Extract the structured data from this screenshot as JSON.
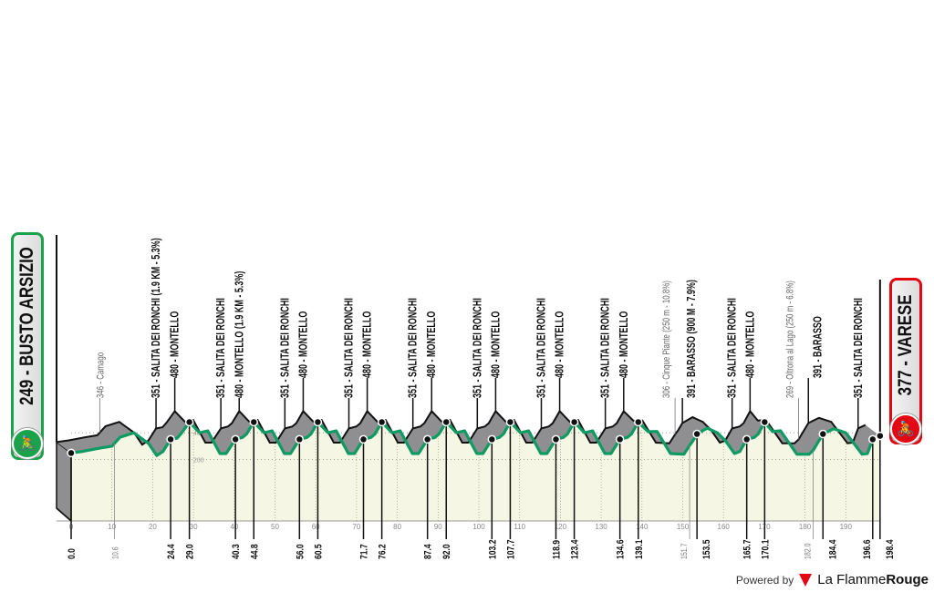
{
  "start": {
    "elevation": "249",
    "name": "BUSTO ARSIZIO",
    "label": "249 - BUSTO ARSIZIO",
    "color": "#1aa34a",
    "icon": "cyclist-icon"
  },
  "finish": {
    "elevation": "377",
    "name": "VARESE",
    "label": "377 - VARESE",
    "color": "#e30613",
    "icon": "cyclist-icon"
  },
  "footer": {
    "powered_by": "Powered by",
    "brand_a": "La Flamme",
    "brand_b": "Rouge"
  },
  "chart_data": {
    "type": "area",
    "xlabel": "",
    "ylabel": "",
    "xlim": [
      0,
      198.4
    ],
    "x_ticks": [
      0,
      10,
      20,
      30,
      40,
      50,
      60,
      70,
      80,
      90,
      100,
      110,
      120,
      130,
      140,
      150,
      160,
      170,
      180,
      190
    ],
    "y_grid": [
      200,
      400
    ],
    "grid": true,
    "colors": {
      "line": "#0e9a63",
      "fill": "#f6f6e4",
      "relief": "#8f8f91"
    },
    "profile": [
      [
        0,
        249
      ],
      [
        3,
        262
      ],
      [
        7,
        285
      ],
      [
        10,
        300
      ],
      [
        12,
        367
      ],
      [
        15.4,
        400
      ],
      [
        16.5,
        375
      ],
      [
        19,
        320
      ],
      [
        21,
        230
      ],
      [
        22.5,
        260
      ],
      [
        24.4,
        351
      ],
      [
        26,
        360
      ],
      [
        27,
        395
      ],
      [
        29,
        480
      ],
      [
        31.5,
        400
      ],
      [
        33.5,
        415
      ],
      [
        36.5,
        245
      ],
      [
        38,
        245
      ],
      [
        40.3,
        351
      ],
      [
        42,
        365
      ],
      [
        43,
        390
      ],
      [
        44.8,
        480
      ],
      [
        47.3,
        400
      ],
      [
        49.3,
        415
      ],
      [
        52.3,
        245
      ],
      [
        53.8,
        245
      ],
      [
        56.0,
        351
      ],
      [
        57.8,
        365
      ],
      [
        58.8,
        390
      ],
      [
        60.5,
        480
      ],
      [
        63,
        400
      ],
      [
        65,
        415
      ],
      [
        68,
        245
      ],
      [
        69.5,
        245
      ],
      [
        71.7,
        351
      ],
      [
        73.5,
        365
      ],
      [
        74.5,
        390
      ],
      [
        76.2,
        480
      ],
      [
        78.7,
        400
      ],
      [
        80.7,
        415
      ],
      [
        83.7,
        245
      ],
      [
        85.2,
        245
      ],
      [
        87.4,
        351
      ],
      [
        89.2,
        365
      ],
      [
        90.2,
        390
      ],
      [
        92.0,
        480
      ],
      [
        94.5,
        400
      ],
      [
        96.5,
        415
      ],
      [
        99.5,
        245
      ],
      [
        101,
        245
      ],
      [
        103.2,
        351
      ],
      [
        105,
        365
      ],
      [
        106,
        390
      ],
      [
        107.7,
        480
      ],
      [
        110.2,
        400
      ],
      [
        112.2,
        415
      ],
      [
        115.2,
        245
      ],
      [
        116.7,
        245
      ],
      [
        118.9,
        351
      ],
      [
        120.7,
        365
      ],
      [
        121.7,
        390
      ],
      [
        123.4,
        480
      ],
      [
        125.9,
        400
      ],
      [
        127.9,
        415
      ],
      [
        130.9,
        245
      ],
      [
        132.4,
        245
      ],
      [
        134.6,
        351
      ],
      [
        136.4,
        365
      ],
      [
        137.4,
        390
      ],
      [
        139.1,
        480
      ],
      [
        141.5,
        408
      ],
      [
        143.7,
        410
      ],
      [
        147,
        245
      ],
      [
        150.3,
        240
      ],
      [
        151.7,
        306
      ],
      [
        152.5,
        340
      ],
      [
        153.5,
        391
      ],
      [
        156,
        435
      ],
      [
        158.5,
        400
      ],
      [
        160.5,
        340
      ],
      [
        162.7,
        245
      ],
      [
        164,
        260
      ],
      [
        165.7,
        351
      ],
      [
        167.5,
        365
      ],
      [
        168.5,
        390
      ],
      [
        170.1,
        480
      ],
      [
        172,
        410
      ],
      [
        174,
        415
      ],
      [
        178,
        240
      ],
      [
        181,
        240
      ],
      [
        182,
        269
      ],
      [
        183,
        320
      ],
      [
        184.4,
        391
      ],
      [
        187,
        430
      ],
      [
        190,
        400
      ],
      [
        194,
        240
      ],
      [
        195.3,
        245
      ],
      [
        196.6,
        351
      ],
      [
        198.4,
        377
      ]
    ],
    "km_markers": [
      {
        "km": 0.0,
        "label": "0.0",
        "major": true
      },
      {
        "km": 10.6,
        "label": "10.6",
        "major": false
      },
      {
        "km": 24.4,
        "label": "24.4",
        "major": true
      },
      {
        "km": 29.0,
        "label": "29.0",
        "major": true
      },
      {
        "km": 40.3,
        "label": "40.3",
        "major": true
      },
      {
        "km": 44.8,
        "label": "44.8",
        "major": true
      },
      {
        "km": 56.0,
        "label": "56.0",
        "major": true
      },
      {
        "km": 60.5,
        "label": "60.5",
        "major": true
      },
      {
        "km": 71.7,
        "label": "71.7",
        "major": true
      },
      {
        "km": 76.2,
        "label": "76.2",
        "major": true
      },
      {
        "km": 87.4,
        "label": "87.4",
        "major": true
      },
      {
        "km": 92.0,
        "label": "92.0",
        "major": true
      },
      {
        "km": 103.2,
        "label": "103.2",
        "major": true
      },
      {
        "km": 107.7,
        "label": "107.7",
        "major": true
      },
      {
        "km": 118.9,
        "label": "118.9",
        "major": true
      },
      {
        "km": 123.4,
        "label": "123.4",
        "major": true
      },
      {
        "km": 134.6,
        "label": "134.6",
        "major": true
      },
      {
        "km": 139.1,
        "label": "139.1",
        "major": true
      },
      {
        "km": 151.7,
        "label": "151.7",
        "major": false
      },
      {
        "km": 153.5,
        "label": "153.5",
        "major": true
      },
      {
        "km": 165.7,
        "label": "165.7",
        "major": true
      },
      {
        "km": 170.1,
        "label": "170.1",
        "major": true
      },
      {
        "km": 182.0,
        "label": "182.0",
        "major": false
      },
      {
        "km": 184.4,
        "label": "184.4",
        "major": true
      },
      {
        "km": 196.6,
        "label": "196.6",
        "major": true
      },
      {
        "km": 198.4,
        "label": "198.4",
        "major": true
      }
    ],
    "waypoints": [
      {
        "km": 10.6,
        "text": "346 - Camago",
        "major": false
      },
      {
        "km": 24.4,
        "text": "351 - SALITA DEI RONCHI (1.9 KM - 5.3%)",
        "major": true
      },
      {
        "km": 29.0,
        "text": "480 - MONTELLO",
        "major": true
      },
      {
        "km": 40.3,
        "text": "351 - SALITA DEI RONCHI",
        "major": true
      },
      {
        "km": 44.8,
        "text": "480 - MONTELLO (1.9 KM - 5.3%)",
        "major": true
      },
      {
        "km": 56.0,
        "text": "351 - SALITA DEI RONCHI",
        "major": true
      },
      {
        "km": 60.5,
        "text": "480 - MONTELLO",
        "major": true
      },
      {
        "km": 71.7,
        "text": "351 - SALITA DEI RONCHI",
        "major": true
      },
      {
        "km": 76.2,
        "text": "480 - MONTELLO",
        "major": true
      },
      {
        "km": 87.4,
        "text": "351 - SALITA DEI RONCHI",
        "major": true
      },
      {
        "km": 92.0,
        "text": "480 - MONTELLO",
        "major": true
      },
      {
        "km": 103.2,
        "text": "351 - SALITA DEI RONCHI",
        "major": true
      },
      {
        "km": 107.7,
        "text": "480 - MONTELLO",
        "major": true
      },
      {
        "km": 118.9,
        "text": "351 - SALITA DEI RONCHI",
        "major": true
      },
      {
        "km": 123.4,
        "text": "480 - MONTELLO",
        "major": true
      },
      {
        "km": 134.6,
        "text": "351 - SALITA DEI RONCHI",
        "major": true
      },
      {
        "km": 139.1,
        "text": "480 - MONTELLO",
        "major": true
      },
      {
        "km": 151.7,
        "text": "306 - Cinque Piante (250 m - 10.8%)",
        "major": false
      },
      {
        "km": 153.5,
        "text": "391 - BARASSO (900 M - 7.9%)",
        "major": true
      },
      {
        "km": 165.7,
        "text": "351 - SALITA DEI RONCHI",
        "major": true
      },
      {
        "km": 170.1,
        "text": "480 - MONTELLO",
        "major": true
      },
      {
        "km": 182.0,
        "text": "269 - Oltrona al Lago (250 m - 6.8%)",
        "major": false
      },
      {
        "km": 184.4,
        "text": "391 - BARASSO",
        "major": true
      },
      {
        "km": 196.6,
        "text": "351 - SALITA DEI RONCHI",
        "major": true
      }
    ]
  }
}
